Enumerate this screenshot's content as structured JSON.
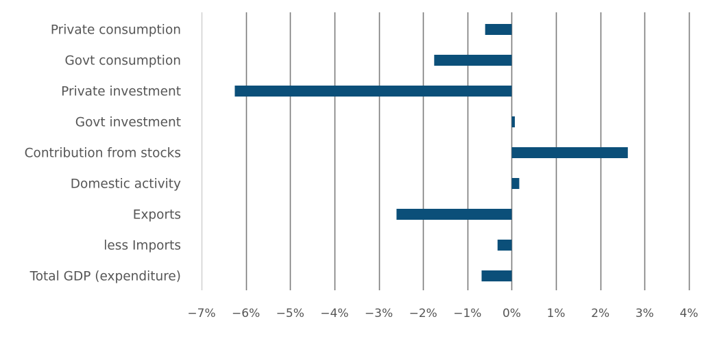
{
  "chart_data": {
    "type": "bar",
    "orientation": "horizontal",
    "title": "",
    "xlabel": "",
    "ylabel": "",
    "categories": [
      "Private consumption",
      "Govt consumption",
      "Private investment",
      "Govt investment",
      "Contribution from stocks",
      "Domestic activity",
      "Exports",
      "less Imports",
      "Total GDP (expenditure)"
    ],
    "values": [
      -0.6,
      -1.75,
      -6.25,
      0.07,
      2.62,
      0.17,
      -2.6,
      -0.32,
      -0.68
    ],
    "xlim": [
      -7,
      4
    ],
    "xticks": [
      -7,
      -6,
      -5,
      -4,
      -3,
      -2,
      -1,
      0,
      1,
      2,
      3,
      4
    ],
    "xtick_labels": [
      "−7%",
      "−6%",
      "−5%",
      "−4%",
      "−3%",
      "−2%",
      "−1%",
      "0%",
      "1%",
      "2%",
      "3%",
      "4%"
    ],
    "grid": "vertical",
    "legend": "none",
    "colors": {
      "bar": "#0b4f79",
      "grid": "#7a7a7a",
      "axis": "#d0d0d0",
      "text": "#555555"
    }
  }
}
